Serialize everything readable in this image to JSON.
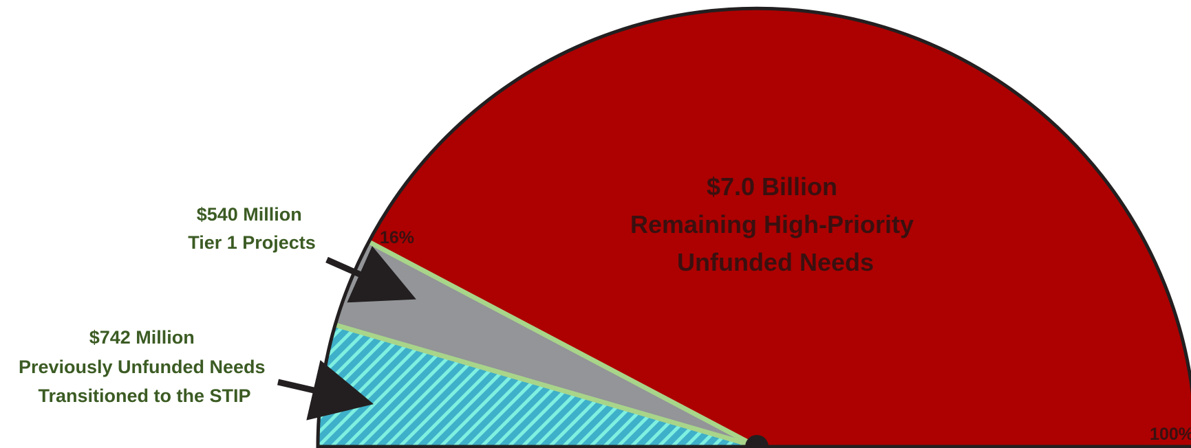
{
  "chart_data": {
    "type": "pie",
    "variant": "semicircle",
    "title": "",
    "slices": [
      {
        "name": "Previously Unfunded Needs Transitioned to the STIP",
        "amount": "$742 Million",
        "lines": [
          "$742 Million",
          "Previously Unfunded Needs",
          "Transitioned to the STIP"
        ],
        "value": 742,
        "unit": "Million",
        "color": "#3fb0c9",
        "pattern": "diagonal-hatch",
        "hatch_color": "#7ff0e0"
      },
      {
        "name": "Tier 1 Projects",
        "amount": "$540 Million",
        "lines": [
          "$540 Million",
          "Tier 1 Projects"
        ],
        "value": 540,
        "unit": "Million",
        "color": "#939598"
      },
      {
        "name": "Remaining High-Priority Unfunded Needs",
        "amount": "$7.0 Billion",
        "lines": [
          "$7.0 Billion",
          "Remaining High-Priority",
          "Unfunded Needs"
        ],
        "value": 7000,
        "unit": "Million",
        "color": "#ad0000"
      }
    ],
    "percent_markers": [
      {
        "label": "16%",
        "value": 16
      },
      {
        "label": "100%",
        "value": 100
      }
    ],
    "colors": {
      "separator": "#a8d58a",
      "outline": "#231f20",
      "label_green": "#3b5b23",
      "label_dark": "#3a1010"
    }
  }
}
